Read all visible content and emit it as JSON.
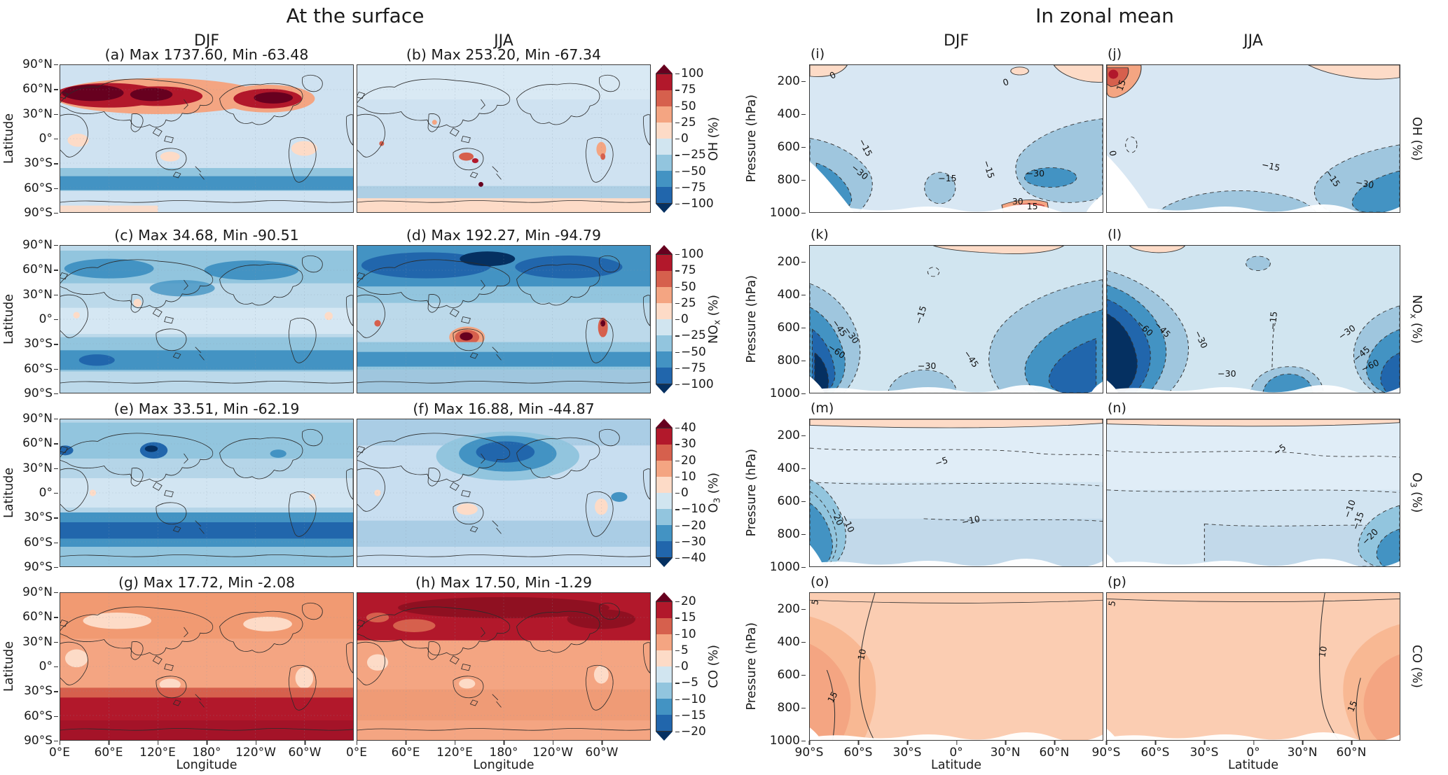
{
  "chart_data": {
    "type": "heatmap",
    "description": "Percent change of OH, NOx, O3 and CO: filled-contour world maps at the surface (DJF, JJA) and zonal-mean latitude-pressure contour sections (DJF, JJA)",
    "surface": {
      "title": "At the surface",
      "columns": [
        "DJF",
        "JJA"
      ],
      "xlabel": "Longitude",
      "ylabel": "Latitude",
      "x_ticks": [
        {
          "t": "0°E",
          "p": 0
        },
        {
          "t": "60°E",
          "p": 16.67
        },
        {
          "t": "120°E",
          "p": 33.33
        },
        {
          "t": "180°",
          "p": 50
        },
        {
          "t": "120°W",
          "p": 66.67
        },
        {
          "t": "60°W",
          "p": 83.33
        }
      ],
      "y_ticks": [
        {
          "t": "90°N",
          "p": 0
        },
        {
          "t": "60°N",
          "p": 16.67
        },
        {
          "t": "30°N",
          "p": 33.33
        },
        {
          "t": "0°",
          "p": 50
        },
        {
          "t": "30°S",
          "p": 66.67
        },
        {
          "t": "60°S",
          "p": 83.33
        },
        {
          "t": "90°S",
          "p": 100
        }
      ],
      "rows": [
        {
          "panels": [
            {
              "title": "(a) Max 1737.60, Min -63.48"
            },
            {
              "title": "(b) Max 253.20, Min -67.34"
            }
          ],
          "colorbar": {
            "label": {
              "main": "OH",
              "sub": "",
              "unit": " (%)"
            },
            "arrow_high": "#67001f",
            "arrow_low": "#053061",
            "colors": [
              "#b2182b",
              "#d6604d",
              "#f4a582",
              "#fddbc7",
              "#d1e5f0",
              "#92c5de",
              "#4393c3",
              "#2166ac"
            ],
            "ticks": [
              {
                "t": "100",
                "p": 0
              },
              {
                "t": "75",
                "p": 12.5
              },
              {
                "t": "50",
                "p": 25
              },
              {
                "t": "25",
                "p": 37.5
              },
              {
                "t": "0",
                "p": 50
              },
              {
                "t": "−25",
                "p": 62.5
              },
              {
                "t": "−50",
                "p": 75
              },
              {
                "t": "−75",
                "p": 87.5
              },
              {
                "t": "−100",
                "p": 100
              }
            ]
          }
        },
        {
          "panels": [
            {
              "title": "(c) Max 34.68, Min -90.51"
            },
            {
              "title": "(d) Max 192.27, Min -94.79"
            }
          ],
          "colorbar": {
            "label": {
              "main": "NO",
              "sub": "x",
              "unit": " (%)"
            },
            "arrow_high": "#67001f",
            "arrow_low": "#053061",
            "colors": [
              "#b2182b",
              "#d6604d",
              "#f4a582",
              "#fddbc7",
              "#d1e5f0",
              "#92c5de",
              "#4393c3",
              "#2166ac"
            ],
            "ticks": [
              {
                "t": "100",
                "p": 0
              },
              {
                "t": "75",
                "p": 12.5
              },
              {
                "t": "50",
                "p": 25
              },
              {
                "t": "25",
                "p": 37.5
              },
              {
                "t": "0",
                "p": 50
              },
              {
                "t": "−25",
                "p": 62.5
              },
              {
                "t": "−50",
                "p": 75
              },
              {
                "t": "−75",
                "p": 87.5
              },
              {
                "t": "−100",
                "p": 100
              }
            ]
          }
        },
        {
          "panels": [
            {
              "title": "(e) Max 33.51, Min -62.19"
            },
            {
              "title": "(f) Max 16.88, Min -44.87"
            }
          ],
          "colorbar": {
            "label": {
              "main": "O",
              "sub": "3",
              "unit": " (%)"
            },
            "arrow_high": "#67001f",
            "arrow_low": "#053061",
            "colors": [
              "#b2182b",
              "#d6604d",
              "#f4a582",
              "#fddbc7",
              "#d1e5f0",
              "#92c5de",
              "#4393c3",
              "#2166ac"
            ],
            "ticks": [
              {
                "t": "40",
                "p": 0
              },
              {
                "t": "30",
                "p": 12.5
              },
              {
                "t": "20",
                "p": 25
              },
              {
                "t": "10",
                "p": 37.5
              },
              {
                "t": "0",
                "p": 50
              },
              {
                "t": "−10",
                "p": 62.5
              },
              {
                "t": "−20",
                "p": 75
              },
              {
                "t": "−30",
                "p": 87.5
              },
              {
                "t": "−40",
                "p": 100
              }
            ]
          }
        },
        {
          "panels": [
            {
              "title": "(g) Max 17.72, Min -2.08"
            },
            {
              "title": "(h) Max 17.50, Min -1.29"
            }
          ],
          "colorbar": {
            "label": {
              "main": "CO",
              "sub": "",
              "unit": " (%)"
            },
            "arrow_high": "#67001f",
            "arrow_low": "#053061",
            "colors": [
              "#b2182b",
              "#d6604d",
              "#f4a582",
              "#fddbc7",
              "#d1e5f0",
              "#92c5de",
              "#4393c3",
              "#2166ac"
            ],
            "ticks": [
              {
                "t": "20",
                "p": 0
              },
              {
                "t": "15",
                "p": 12.5
              },
              {
                "t": "10",
                "p": 25
              },
              {
                "t": "5",
                "p": 37.5
              },
              {
                "t": "0",
                "p": 50
              },
              {
                "t": "−5",
                "p": 62.5
              },
              {
                "t": "−10",
                "p": 75
              },
              {
                "t": "−15",
                "p": 87.5
              },
              {
                "t": "−20",
                "p": 100
              }
            ]
          }
        }
      ]
    },
    "zonal": {
      "title": "In zonal mean",
      "columns": [
        "DJF",
        "JJA"
      ],
      "xlabel": "Latitude",
      "ylabel": "Pressure (hPa)",
      "x_ticks": [
        {
          "t": "90°S",
          "p": 0
        },
        {
          "t": "60°S",
          "p": 16.67
        },
        {
          "t": "30°S",
          "p": 33.33
        },
        {
          "t": "0°",
          "p": 50
        },
        {
          "t": "30°N",
          "p": 66.67
        },
        {
          "t": "60°N",
          "p": 83.33
        }
      ],
      "y_ticks": [
        {
          "t": "200",
          "p": 11.1
        },
        {
          "t": "400",
          "p": 33.3
        },
        {
          "t": "600",
          "p": 55.6
        },
        {
          "t": "800",
          "p": 77.8
        },
        {
          "t": "1000",
          "p": 100
        }
      ],
      "rows": [
        {
          "label": {
            "main": "OH",
            "sub": "",
            "unit": " (%)"
          },
          "panels": [
            {
              "letter": "(i)",
              "contour_labels": [
                {
                  "t": "0",
                  "x": 8,
                  "y": 7,
                  "r": -30
                },
                {
                  "t": "0",
                  "x": 67,
                  "y": 12,
                  "r": -20
                },
                {
                  "t": "−15",
                  "x": 19,
                  "y": 56,
                  "r": 62
                },
                {
                  "t": "−30",
                  "x": 17,
                  "y": 73,
                  "r": 40
                },
                {
                  "t": "−15",
                  "x": 47,
                  "y": 77,
                  "r": 0
                },
                {
                  "t": "−15",
                  "x": 61,
                  "y": 71,
                  "r": 72
                },
                {
                  "t": "−30",
                  "x": 77,
                  "y": 74,
                  "r": 0
                },
                {
                  "t": "30",
                  "x": 71,
                  "y": 93,
                  "r": 0
                },
                {
                  "t": "15",
                  "x": 76,
                  "y": 96,
                  "r": 0
                }
              ]
            },
            {
              "letter": "(j)",
              "contour_labels": [
                {
                  "t": "15",
                  "x": 5,
                  "y": 14,
                  "r": -70
                },
                {
                  "t": "0",
                  "x": 2,
                  "y": 60,
                  "r": 80
                },
                {
                  "t": "−15",
                  "x": 56,
                  "y": 69,
                  "r": 12
                },
                {
                  "t": "−15",
                  "x": 77,
                  "y": 77,
                  "r": 55
                },
                {
                  "t": "−30",
                  "x": 88,
                  "y": 81,
                  "r": 10
                }
              ]
            }
          ]
        },
        {
          "label": {
            "main": "NO",
            "sub": "x",
            "unit": " (%)"
          },
          "panels": [
            {
              "letter": "(k)",
              "contour_labels": [
                {
                  "t": "−15",
                  "x": 38,
                  "y": 47,
                  "r": -72
                },
                {
                  "t": "−45",
                  "x": 10,
                  "y": 56,
                  "r": 55
                },
                {
                  "t": "−30",
                  "x": 14,
                  "y": 61,
                  "r": 55
                },
                {
                  "t": "−60",
                  "x": 9,
                  "y": 72,
                  "r": 35
                },
                {
                  "t": "−30",
                  "x": 40,
                  "y": 82,
                  "r": 0
                },
                {
                  "t": "−45",
                  "x": 55,
                  "y": 77,
                  "r": 55
                }
              ]
            },
            {
              "letter": "(l)",
              "contour_labels": [
                {
                  "t": "−60",
                  "x": 13,
                  "y": 56,
                  "r": 45
                },
                {
                  "t": "−45",
                  "x": 19,
                  "y": 57,
                  "r": 45
                },
                {
                  "t": "−30",
                  "x": 32,
                  "y": 64,
                  "r": 65
                },
                {
                  "t": "−15",
                  "x": 57,
                  "y": 51,
                  "r": -85
                },
                {
                  "t": "−30",
                  "x": 41,
                  "y": 87,
                  "r": 0
                },
                {
                  "t": "−30",
                  "x": 82,
                  "y": 59,
                  "r": -35
                },
                {
                  "t": "−45",
                  "x": 87,
                  "y": 74,
                  "r": -40
                },
                {
                  "t": "−60",
                  "x": 90,
                  "y": 82,
                  "r": -25
                }
              ]
            }
          ]
        },
        {
          "label": {
            "main": "O",
            "sub": "3",
            "unit": " (%)"
          },
          "panels": [
            {
              "letter": "(m)",
              "contour_labels": [
                {
                  "t": "−5",
                  "x": 45,
                  "y": 29,
                  "r": -18
                },
                {
                  "t": "−10",
                  "x": 55,
                  "y": 69,
                  "r": -12
                },
                {
                  "t": "−20",
                  "x": 9,
                  "y": 66,
                  "r": 65
                },
                {
                  "t": "−10",
                  "x": 13,
                  "y": 71,
                  "r": 65
                }
              ]
            },
            {
              "letter": "(n)",
              "contour_labels": [
                {
                  "t": "−5",
                  "x": 59,
                  "y": 21,
                  "r": -35
                },
                {
                  "t": "−10",
                  "x": 83,
                  "y": 61,
                  "r": -70
                },
                {
                  "t": "−15",
                  "x": 86,
                  "y": 69,
                  "r": -70
                },
                {
                  "t": "−20",
                  "x": 90,
                  "y": 80,
                  "r": -45
                }
              ]
            }
          ]
        },
        {
          "label": {
            "main": "CO",
            "sub": "",
            "unit": " (%)"
          },
          "panels": [
            {
              "letter": "(o)",
              "contour_labels": [
                {
                  "t": "5",
                  "x": 2,
                  "y": 6,
                  "r": -80
                },
                {
                  "t": "10",
                  "x": 18,
                  "y": 42,
                  "r": -78
                },
                {
                  "t": "15",
                  "x": 8,
                  "y": 71,
                  "r": -62
                }
              ]
            },
            {
              "letter": "(p)",
              "contour_labels": [
                {
                  "t": "5",
                  "x": 2,
                  "y": 7,
                  "r": -80
                },
                {
                  "t": "10",
                  "x": 74,
                  "y": 40,
                  "r": -80
                },
                {
                  "t": "15",
                  "x": 84,
                  "y": 77,
                  "r": -68
                }
              ]
            }
          ]
        }
      ]
    }
  }
}
